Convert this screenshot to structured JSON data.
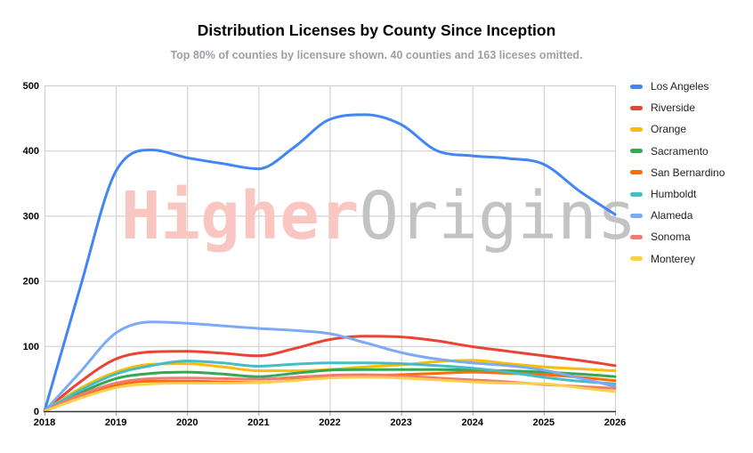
{
  "title": "Distribution Licenses by County Since Inception",
  "subtitle": "Top 80% of counties by licensure shown. 40 counties and 163 liceses omitted.",
  "watermark": {
    "left_text": "Higher",
    "right_text": "Origins",
    "left_color": "#f9c6c1",
    "right_color": "#c3c3c3"
  },
  "chart_data": {
    "type": "line",
    "title": "Distribution Licenses by County Since Inception",
    "xlabel": "",
    "ylabel": "",
    "xlim": [
      2018,
      2026
    ],
    "ylim": [
      0,
      500
    ],
    "grid": true,
    "legend_position": "right",
    "x_ticks": [
      2018,
      2019,
      2020,
      2021,
      2022,
      2023,
      2024,
      2025,
      2026
    ],
    "y_ticks": [
      0,
      100,
      200,
      300,
      400,
      500
    ],
    "x": [
      2018,
      2018.5,
      2019,
      2019.5,
      2020,
      2020.5,
      2021,
      2021.5,
      2022,
      2022.5,
      2023,
      2023.5,
      2024,
      2024.5,
      2025,
      2025.5,
      2026
    ],
    "series": [
      {
        "name": "Los Angeles",
        "color": "#4285F4",
        "values": [
          0,
          190,
          368,
          401,
          389,
          380,
          372,
          405,
          448,
          455,
          440,
          400,
          392,
          388,
          379,
          338,
          302
        ]
      },
      {
        "name": "Riverside",
        "color": "#EA4335",
        "values": [
          0,
          45,
          80,
          91,
          92,
          89,
          85,
          96,
          110,
          115,
          114,
          108,
          99,
          92,
          85,
          78,
          70
        ]
      },
      {
        "name": "Orange",
        "color": "#FBBC04",
        "values": [
          0,
          35,
          60,
          72,
          73,
          68,
          62,
          62,
          64,
          68,
          71,
          76,
          78,
          73,
          68,
          65,
          62
        ]
      },
      {
        "name": "Sacramento",
        "color": "#34A853",
        "values": [
          0,
          28,
          50,
          58,
          60,
          57,
          53,
          58,
          63,
          64,
          64,
          64,
          63,
          62,
          60,
          57,
          53
        ]
      },
      {
        "name": "San Bernardino",
        "color": "#FF6D01",
        "values": [
          0,
          22,
          40,
          46,
          46,
          45,
          44,
          48,
          53,
          55,
          56,
          58,
          60,
          58,
          56,
          52,
          47
        ]
      },
      {
        "name": "Humboldt",
        "color": "#46BDC6",
        "values": [
          0,
          32,
          57,
          70,
          77,
          74,
          69,
          72,
          74,
          74,
          73,
          70,
          66,
          60,
          52,
          46,
          42
        ]
      },
      {
        "name": "Alameda",
        "color": "#7BAAF7",
        "values": [
          0,
          60,
          120,
          137,
          135,
          131,
          127,
          124,
          119,
          105,
          90,
          80,
          74,
          70,
          63,
          51,
          38
        ]
      },
      {
        "name": "Sonoma",
        "color": "#F07B72",
        "values": [
          0,
          25,
          43,
          50,
          51,
          50,
          49,
          52,
          55,
          56,
          54,
          51,
          48,
          45,
          41,
          38,
          35
        ]
      },
      {
        "name": "Monterey",
        "color": "#FCD04F",
        "values": [
          0,
          20,
          36,
          42,
          43,
          43,
          44,
          47,
          51,
          52,
          51,
          48,
          45,
          43,
          42,
          36,
          30
        ]
      }
    ]
  }
}
